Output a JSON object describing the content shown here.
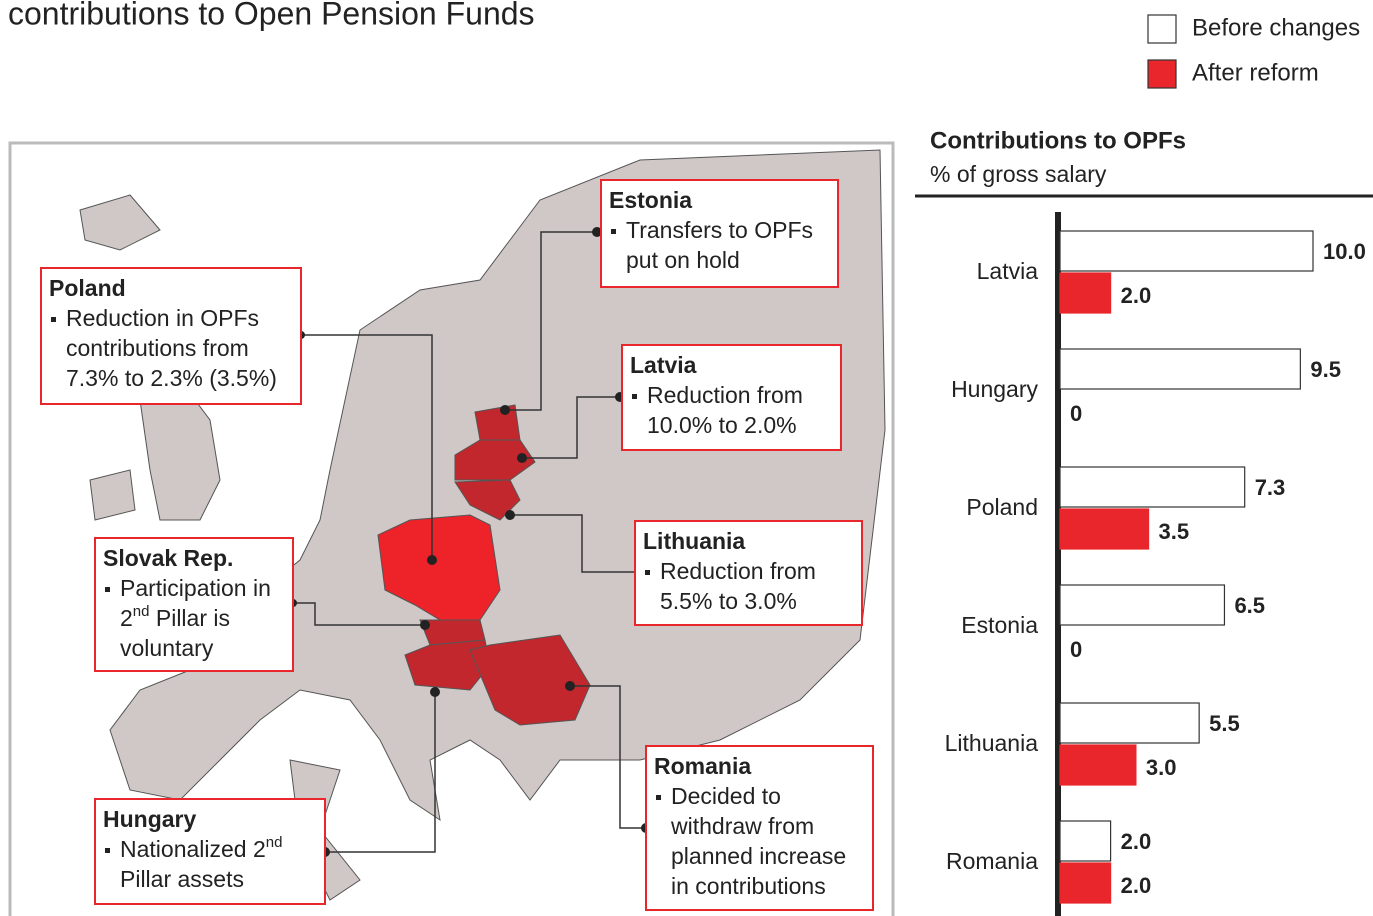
{
  "title": "contributions to Open Pension Funds",
  "map": {
    "callouts": [
      {
        "name": "Estonia",
        "lines": [
          [
            "Transfers to OPFs"
          ],
          [
            "put on hold"
          ]
        ]
      },
      {
        "name": "Poland",
        "lines": [
          [
            "Reduction in OPFs"
          ],
          [
            "contributions from"
          ],
          [
            "7.3% to 2.3% (3.5%)"
          ]
        ]
      },
      {
        "name": "Latvia",
        "lines": [
          [
            "Reduction from"
          ],
          [
            "10.0% to 2.0%"
          ]
        ]
      },
      {
        "name": "Lithuania",
        "lines": [
          [
            "Reduction from"
          ],
          [
            "5.5% to 3.0%"
          ]
        ]
      },
      {
        "name": "Slovak Rep.",
        "lines": [
          [
            "Participation in"
          ],
          [
            "2",
            "nd",
            " Pillar is"
          ],
          [
            "voluntary"
          ]
        ]
      },
      {
        "name": "Hungary",
        "lines": [
          [
            "Nationalized 2",
            "nd"
          ],
          [
            "Pillar assets"
          ]
        ]
      },
      {
        "name": "Romania",
        "lines": [
          [
            "Decided to"
          ],
          [
            "withdraw from"
          ],
          [
            "planned increase"
          ],
          [
            "in contributions"
          ]
        ]
      }
    ]
  },
  "chart_data": {
    "type": "hbar",
    "title": "Contributions to OPFs",
    "subtitle": "% of gross salary",
    "categories": [
      "Latvia",
      "Hungary",
      "Poland",
      "Estonia",
      "Lithuania",
      "Romania"
    ],
    "series": [
      {
        "name": "Before changes",
        "color": "#ffffff",
        "values": [
          10,
          9.5,
          7.3,
          6.5,
          5.5,
          2
        ],
        "value_labels": [
          "10.0",
          "9.5",
          "7.3",
          "6.5",
          "5.5",
          "2.0"
        ]
      },
      {
        "name": "After reform",
        "color": "#e8262b",
        "values": [
          2,
          0,
          3.5,
          0,
          3,
          2
        ],
        "value_labels": [
          "2.0",
          "0",
          "3.5",
          "0",
          "3.0",
          "2.0"
        ]
      }
    ],
    "xlim": [
      0,
      12
    ],
    "legend": "top-right"
  }
}
